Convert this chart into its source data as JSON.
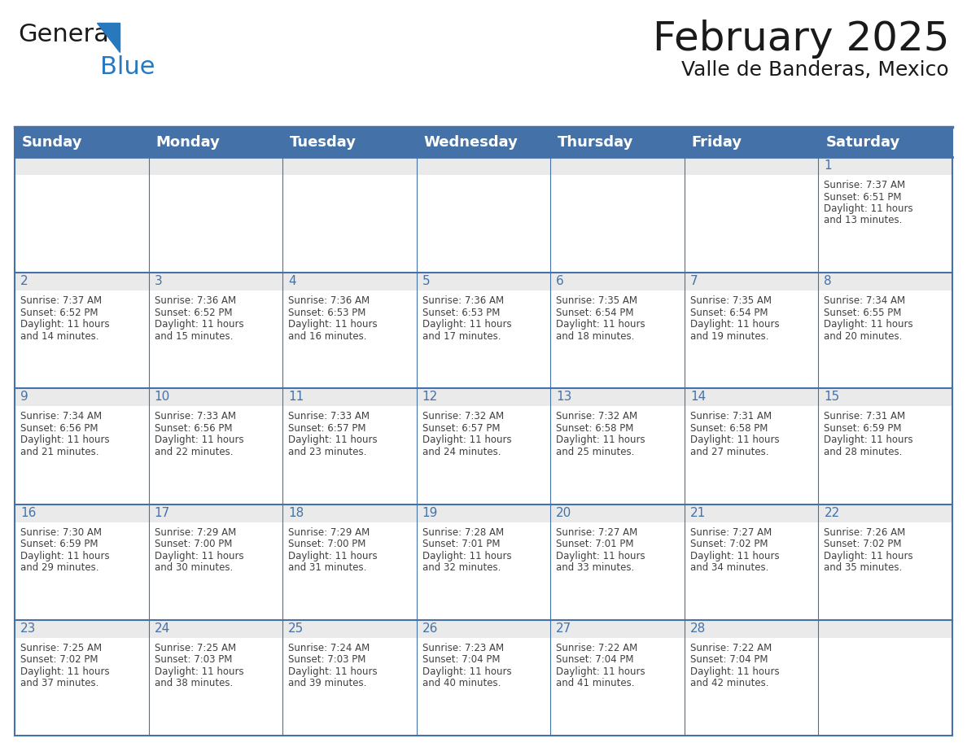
{
  "title": "February 2025",
  "subtitle": "Valle de Banderas, Mexico",
  "header_bg_color": "#4472a8",
  "header_text_color": "#ffffff",
  "cell_top_bg_color": "#eaeaea",
  "cell_body_bg_color": "#ffffff",
  "grid_line_color": "#4472a8",
  "day_number_color": "#4472a8",
  "cell_text_color": "#404040",
  "days_of_week": [
    "Sunday",
    "Monday",
    "Tuesday",
    "Wednesday",
    "Thursday",
    "Friday",
    "Saturday"
  ],
  "title_fontsize": 36,
  "subtitle_fontsize": 18,
  "header_fontsize": 13,
  "day_num_fontsize": 11,
  "cell_text_fontsize": 8.5,
  "logo_general_color": "#1a1a1a",
  "logo_blue_color": "#2878be",
  "logo_triangle_color": "#2878be",
  "calendar_data": [
    [
      {
        "day": null,
        "sunrise": null,
        "sunset": null,
        "daylight": null
      },
      {
        "day": null,
        "sunrise": null,
        "sunset": null,
        "daylight": null
      },
      {
        "day": null,
        "sunrise": null,
        "sunset": null,
        "daylight": null
      },
      {
        "day": null,
        "sunrise": null,
        "sunset": null,
        "daylight": null
      },
      {
        "day": null,
        "sunrise": null,
        "sunset": null,
        "daylight": null
      },
      {
        "day": null,
        "sunrise": null,
        "sunset": null,
        "daylight": null
      },
      {
        "day": 1,
        "sunrise": "7:37 AM",
        "sunset": "6:51 PM",
        "daylight": "11 hours and 13 minutes."
      }
    ],
    [
      {
        "day": 2,
        "sunrise": "7:37 AM",
        "sunset": "6:52 PM",
        "daylight": "11 hours and 14 minutes."
      },
      {
        "day": 3,
        "sunrise": "7:36 AM",
        "sunset": "6:52 PM",
        "daylight": "11 hours and 15 minutes."
      },
      {
        "day": 4,
        "sunrise": "7:36 AM",
        "sunset": "6:53 PM",
        "daylight": "11 hours and 16 minutes."
      },
      {
        "day": 5,
        "sunrise": "7:36 AM",
        "sunset": "6:53 PM",
        "daylight": "11 hours and 17 minutes."
      },
      {
        "day": 6,
        "sunrise": "7:35 AM",
        "sunset": "6:54 PM",
        "daylight": "11 hours and 18 minutes."
      },
      {
        "day": 7,
        "sunrise": "7:35 AM",
        "sunset": "6:54 PM",
        "daylight": "11 hours and 19 minutes."
      },
      {
        "day": 8,
        "sunrise": "7:34 AM",
        "sunset": "6:55 PM",
        "daylight": "11 hours and 20 minutes."
      }
    ],
    [
      {
        "day": 9,
        "sunrise": "7:34 AM",
        "sunset": "6:56 PM",
        "daylight": "11 hours and 21 minutes."
      },
      {
        "day": 10,
        "sunrise": "7:33 AM",
        "sunset": "6:56 PM",
        "daylight": "11 hours and 22 minutes."
      },
      {
        "day": 11,
        "sunrise": "7:33 AM",
        "sunset": "6:57 PM",
        "daylight": "11 hours and 23 minutes."
      },
      {
        "day": 12,
        "sunrise": "7:32 AM",
        "sunset": "6:57 PM",
        "daylight": "11 hours and 24 minutes."
      },
      {
        "day": 13,
        "sunrise": "7:32 AM",
        "sunset": "6:58 PM",
        "daylight": "11 hours and 25 minutes."
      },
      {
        "day": 14,
        "sunrise": "7:31 AM",
        "sunset": "6:58 PM",
        "daylight": "11 hours and 27 minutes."
      },
      {
        "day": 15,
        "sunrise": "7:31 AM",
        "sunset": "6:59 PM",
        "daylight": "11 hours and 28 minutes."
      }
    ],
    [
      {
        "day": 16,
        "sunrise": "7:30 AM",
        "sunset": "6:59 PM",
        "daylight": "11 hours and 29 minutes."
      },
      {
        "day": 17,
        "sunrise": "7:29 AM",
        "sunset": "7:00 PM",
        "daylight": "11 hours and 30 minutes."
      },
      {
        "day": 18,
        "sunrise": "7:29 AM",
        "sunset": "7:00 PM",
        "daylight": "11 hours and 31 minutes."
      },
      {
        "day": 19,
        "sunrise": "7:28 AM",
        "sunset": "7:01 PM",
        "daylight": "11 hours and 32 minutes."
      },
      {
        "day": 20,
        "sunrise": "7:27 AM",
        "sunset": "7:01 PM",
        "daylight": "11 hours and 33 minutes."
      },
      {
        "day": 21,
        "sunrise": "7:27 AM",
        "sunset": "7:02 PM",
        "daylight": "11 hours and 34 minutes."
      },
      {
        "day": 22,
        "sunrise": "7:26 AM",
        "sunset": "7:02 PM",
        "daylight": "11 hours and 35 minutes."
      }
    ],
    [
      {
        "day": 23,
        "sunrise": "7:25 AM",
        "sunset": "7:02 PM",
        "daylight": "11 hours and 37 minutes."
      },
      {
        "day": 24,
        "sunrise": "7:25 AM",
        "sunset": "7:03 PM",
        "daylight": "11 hours and 38 minutes."
      },
      {
        "day": 25,
        "sunrise": "7:24 AM",
        "sunset": "7:03 PM",
        "daylight": "11 hours and 39 minutes."
      },
      {
        "day": 26,
        "sunrise": "7:23 AM",
        "sunset": "7:04 PM",
        "daylight": "11 hours and 40 minutes."
      },
      {
        "day": 27,
        "sunrise": "7:22 AM",
        "sunset": "7:04 PM",
        "daylight": "11 hours and 41 minutes."
      },
      {
        "day": 28,
        "sunrise": "7:22 AM",
        "sunset": "7:04 PM",
        "daylight": "11 hours and 42 minutes."
      },
      {
        "day": null,
        "sunrise": null,
        "sunset": null,
        "daylight": null
      }
    ]
  ]
}
